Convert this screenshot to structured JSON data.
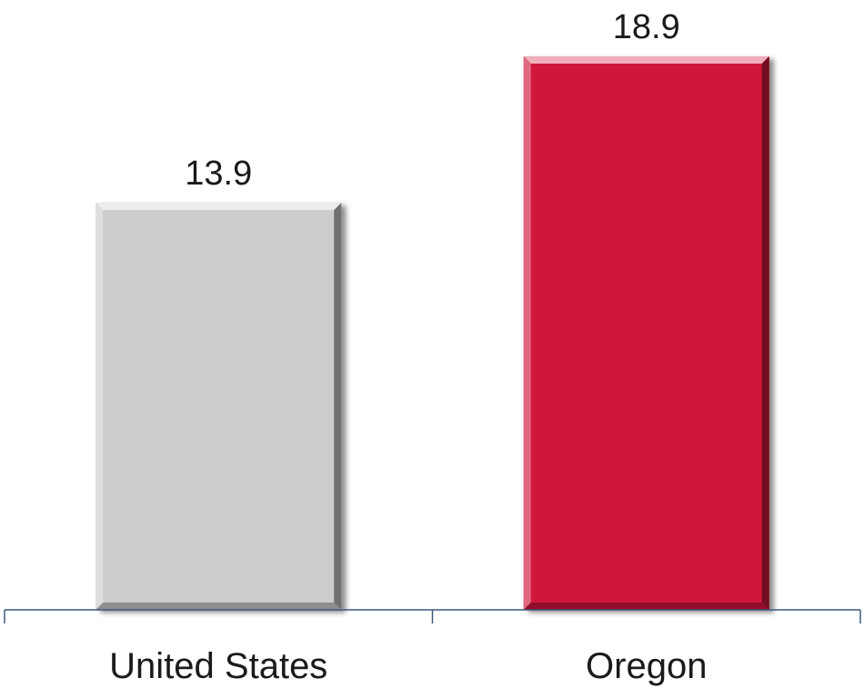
{
  "chart_data": {
    "type": "bar",
    "categories": [
      "United States",
      "Oregon"
    ],
    "values": [
      13.9,
      18.9
    ],
    "data_labels": [
      "13.9",
      "18.9"
    ],
    "bar_colors": [
      "#cccccc",
      "#d0183a"
    ],
    "title": "",
    "xlabel": "",
    "ylabel": "",
    "ylim": [
      0,
      18.9
    ],
    "grid": false,
    "legend": "none",
    "axis_color": "#3b5a7a"
  }
}
